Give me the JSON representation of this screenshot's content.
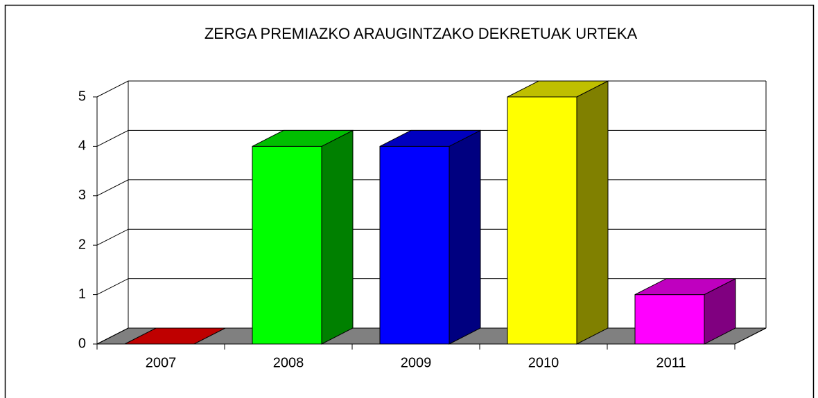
{
  "chart_data": {
    "type": "bar3d",
    "title": "ZERGA PREMIAZKO ARAUGINTZAKO DEKRETUAK URTEKA",
    "categories": [
      "2007",
      "2008",
      "2009",
      "2010",
      "2011"
    ],
    "values": [
      0,
      4,
      4,
      5,
      1
    ],
    "colors": [
      "#ff0000",
      "#00ff00",
      "#0000ff",
      "#ffff00",
      "#ff00ff"
    ],
    "ylim": [
      0,
      5
    ],
    "yticks": [
      0,
      1,
      2,
      3,
      4,
      5
    ],
    "grid": true
  }
}
